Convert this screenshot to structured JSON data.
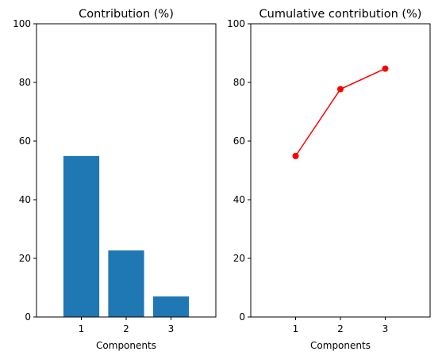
{
  "chart_data": [
    {
      "type": "bar",
      "title": "Contribution (%)",
      "xlabel": "Components",
      "ylabel": "",
      "categories": [
        "1",
        "2",
        "3"
      ],
      "values": [
        54.9,
        22.7,
        7.0
      ],
      "ylim": [
        0,
        100
      ],
      "xlim": [
        0,
        4
      ],
      "yticks": [
        "0",
        "20",
        "40",
        "60",
        "80",
        "100"
      ],
      "color": "#1f77b4",
      "grid": false
    },
    {
      "type": "line",
      "title": "Cumulative contribution (%)",
      "xlabel": "Components",
      "ylabel": "",
      "x": [
        1,
        2,
        3
      ],
      "xticks": [
        "1",
        "2",
        "3"
      ],
      "values": [
        54.9,
        77.7,
        84.7
      ],
      "ylim": [
        0,
        100
      ],
      "xlim": [
        0,
        4
      ],
      "yticks": [
        "0",
        "20",
        "40",
        "60",
        "80",
        "100"
      ],
      "color": "#ff0000",
      "marker": "circle",
      "grid": false
    }
  ]
}
